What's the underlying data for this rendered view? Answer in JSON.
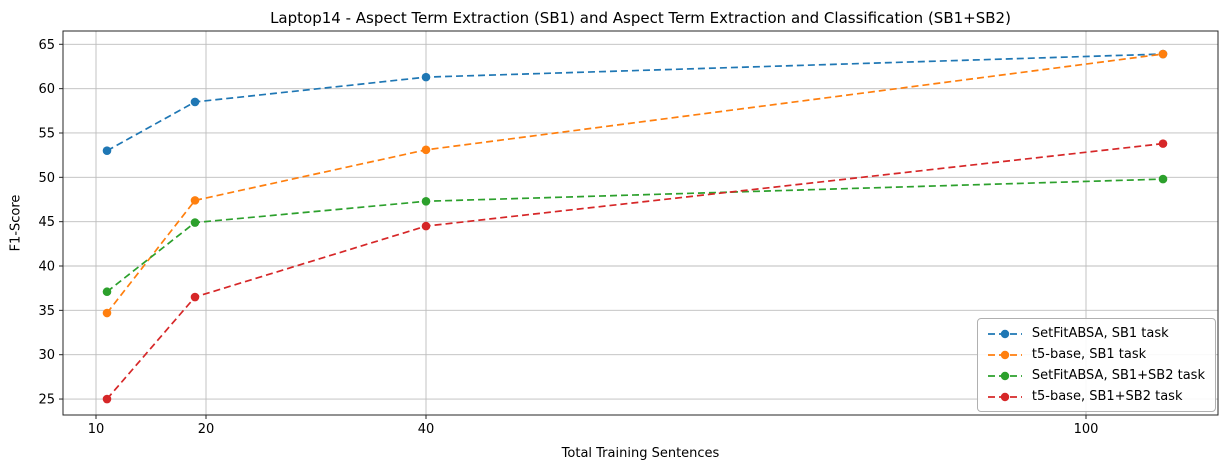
{
  "chart_data": {
    "type": "line",
    "title": "Laptop14 - Aspect Term Extraction (SB1) and Aspect Term Extraction and Classification (SB1+SB2)",
    "xlabel": "Total Training Sentences",
    "ylabel": "F1-Score",
    "x": [
      11,
      19,
      40,
      107
    ],
    "series": [
      {
        "name": "SetFitABSA, SB1 task",
        "color": "#1f77b4",
        "values": [
          53.0,
          58.5,
          61.3,
          63.9
        ]
      },
      {
        "name": "t5-base, SB1 task",
        "color": "#ff7f0e",
        "values": [
          34.7,
          47.4,
          53.1,
          63.9
        ]
      },
      {
        "name": "SetFitABSA, SB1+SB2 task",
        "color": "#2ca02c",
        "values": [
          37.1,
          44.9,
          47.3,
          49.8
        ]
      },
      {
        "name": "t5-base, SB1+SB2 task",
        "color": "#d62728",
        "values": [
          25.0,
          36.5,
          44.5,
          53.8
        ]
      }
    ],
    "xlim": [
      7,
      112
    ],
    "ylim": [
      23.2,
      66.5
    ],
    "xticks": [
      10,
      20,
      40,
      100
    ],
    "yticks": [
      25,
      30,
      35,
      40,
      45,
      50,
      55,
      60,
      65
    ],
    "grid": true,
    "line_style": "dashed",
    "marker": "circle",
    "legend_position": "lower right",
    "grid_color": "#bdbdbd",
    "spine_color": "#262626",
    "tick_label_color": "#000000"
  }
}
